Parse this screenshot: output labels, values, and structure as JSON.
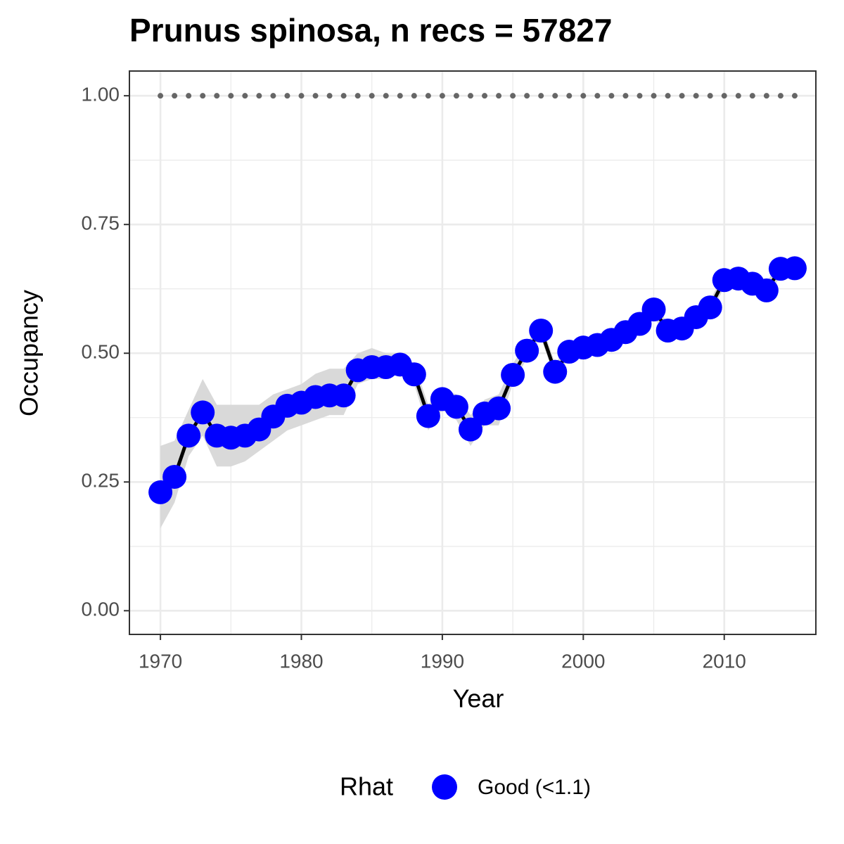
{
  "chart_data": {
    "type": "line",
    "title": "Prunus spinosa, n recs = 57827",
    "xlabel": "Year",
    "ylabel": "Occupancy",
    "legend_title": "Rhat",
    "x": [
      1970,
      1971,
      1972,
      1973,
      1974,
      1975,
      1976,
      1977,
      1978,
      1979,
      1980,
      1981,
      1982,
      1983,
      1984,
      1985,
      1986,
      1987,
      1988,
      1989,
      1990,
      1991,
      1992,
      1993,
      1994,
      1995,
      1996,
      1997,
      1998,
      1999,
      2000,
      2001,
      2002,
      2003,
      2004,
      2005,
      2006,
      2007,
      2008,
      2009,
      2010,
      2011,
      2012,
      2013,
      2014,
      2015
    ],
    "series": [
      {
        "name": "Good (<1.1)",
        "color": "#0000ff",
        "line_color": "#000000",
        "values": [
          0.23,
          0.26,
          0.34,
          0.385,
          0.34,
          0.336,
          0.34,
          0.352,
          0.377,
          0.398,
          0.404,
          0.415,
          0.418,
          0.418,
          0.467,
          0.473,
          0.473,
          0.478,
          0.459,
          0.378,
          0.411,
          0.396,
          0.352,
          0.383,
          0.393,
          0.458,
          0.505,
          0.544,
          0.464,
          0.503,
          0.511,
          0.516,
          0.526,
          0.541,
          0.557,
          0.585,
          0.544,
          0.548,
          0.57,
          0.589,
          0.642,
          0.645,
          0.635,
          0.622,
          0.664,
          0.665
        ],
        "lower": [
          0.16,
          0.21,
          0.3,
          0.34,
          0.28,
          0.28,
          0.29,
          0.31,
          0.33,
          0.35,
          0.36,
          0.37,
          0.38,
          0.38,
          0.44,
          0.45,
          0.45,
          0.46,
          0.44,
          0.35,
          0.39,
          0.37,
          0.32,
          0.36,
          0.36,
          0.44,
          0.49,
          0.53,
          0.45,
          0.49,
          0.5,
          0.503,
          0.513,
          0.528,
          0.543,
          0.57,
          0.53,
          0.535,
          0.556,
          0.575,
          0.628,
          0.632,
          0.62,
          0.606,
          0.65,
          0.65
        ],
        "upper": [
          0.32,
          0.33,
          0.39,
          0.45,
          0.4,
          0.4,
          0.4,
          0.4,
          0.42,
          0.43,
          0.44,
          0.46,
          0.47,
          0.47,
          0.5,
          0.51,
          0.5,
          0.5,
          0.48,
          0.4,
          0.43,
          0.42,
          0.38,
          0.41,
          0.42,
          0.48,
          0.52,
          0.56,
          0.48,
          0.52,
          0.522,
          0.529,
          0.539,
          0.554,
          0.571,
          0.6,
          0.558,
          0.561,
          0.584,
          0.603,
          0.656,
          0.658,
          0.65,
          0.638,
          0.678,
          0.68
        ]
      }
    ],
    "reference_values": [
      1,
      1,
      1,
      1,
      1,
      1,
      1,
      1,
      1,
      1,
      1,
      1,
      1,
      1,
      1,
      1,
      1,
      1,
      1,
      1,
      1,
      1,
      1,
      1,
      1,
      1,
      1,
      1,
      1,
      1,
      1,
      1,
      1,
      1,
      1,
      1,
      1,
      1,
      1,
      1,
      1,
      1,
      1,
      1,
      1,
      1
    ],
    "reference_color": "#666666",
    "ribbon_color": "#d9d9d9",
    "xlim": [
      1967.8,
      2016.5
    ],
    "ylim": [
      -0.046,
      1.048
    ],
    "xticks": [
      1970,
      1980,
      1990,
      2000,
      2010
    ],
    "yticks": [
      {
        "value": 0,
        "label": "0.00"
      },
      {
        "value": 0.25,
        "label": "0.25"
      },
      {
        "value": 0.5,
        "label": "0.50"
      },
      {
        "value": 0.75,
        "label": "0.75"
      },
      {
        "value": 1,
        "label": "1.00"
      }
    ],
    "grid": true,
    "legend": "bottom"
  }
}
